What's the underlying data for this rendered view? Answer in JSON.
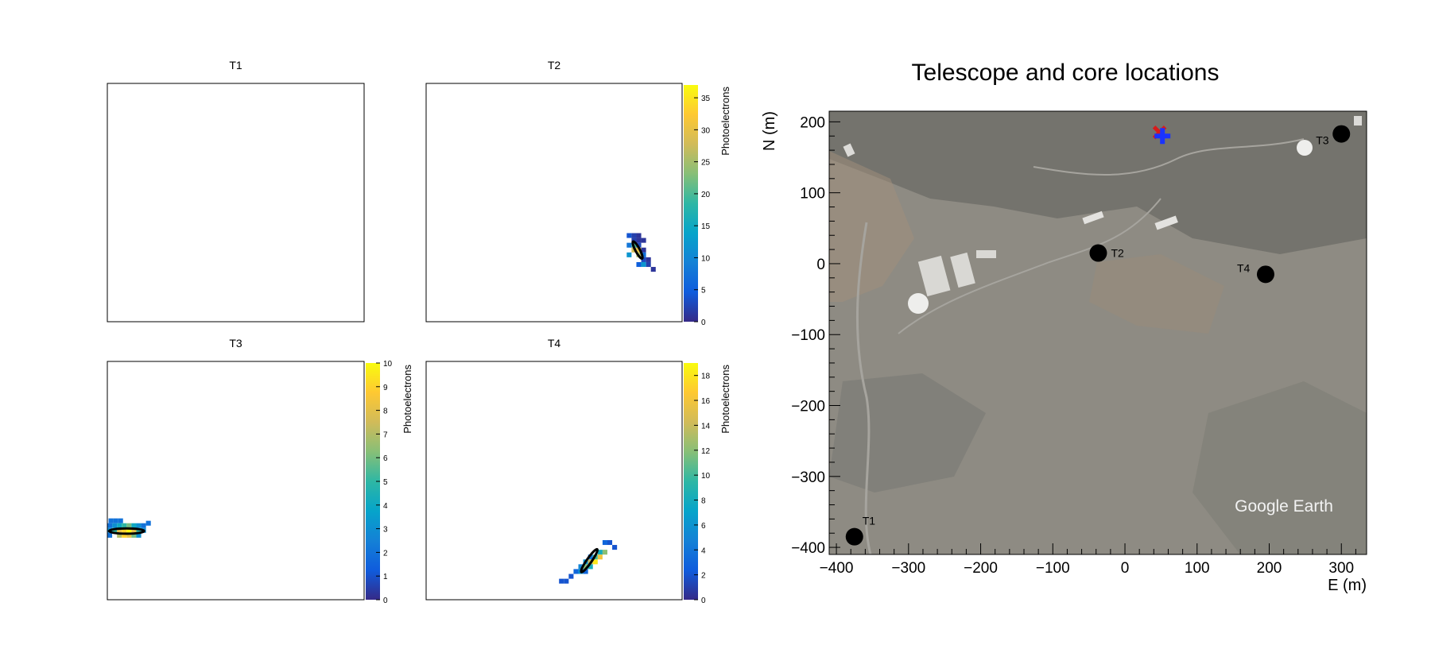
{
  "colors": {
    "palette": [
      "#352a87",
      "#0f5cdd",
      "#1481d6",
      "#06a4ca",
      "#2eb7a4",
      "#87bf77",
      "#d1bb59",
      "#fec832",
      "#f9fb0e"
    ],
    "ellipse": "#000000",
    "background": "#ffffff",
    "map_ground": "#8e8b83",
    "map_vegetation": "#6b6b66",
    "marker_telescope": "#000000",
    "marker_core_true": "#d91a1a",
    "marker_core_reco": "#1a33ff"
  },
  "camera_panels": [
    {
      "id": "T1",
      "title": "T1",
      "has_colorbar": false,
      "colorbar": null,
      "pixels": [],
      "ellipse": null
    },
    {
      "id": "T2",
      "title": "T2",
      "has_colorbar": true,
      "colorbar": {
        "label": "Photoelectrons",
        "min": 0,
        "max": 37,
        "ticks": [
          "0",
          "5",
          "10",
          "15",
          "20",
          "25",
          "30",
          "35"
        ]
      },
      "pixels": [
        [
          16.8,
          12.6,
          4
        ],
        [
          17.2,
          12.6,
          2
        ],
        [
          17.6,
          12.6,
          1
        ],
        [
          17.2,
          13.0,
          2
        ],
        [
          17.6,
          13.0,
          1
        ],
        [
          18.0,
          13.0,
          1
        ],
        [
          16.8,
          13.4,
          8
        ],
        [
          17.2,
          13.4,
          20
        ],
        [
          17.6,
          13.4,
          3
        ],
        [
          17.2,
          13.8,
          28
        ],
        [
          17.6,
          13.8,
          30
        ],
        [
          18.0,
          13.8,
          1
        ],
        [
          16.8,
          14.2,
          12
        ],
        [
          17.6,
          14.2,
          26
        ],
        [
          18.0,
          14.2,
          7
        ],
        [
          18.0,
          14.6,
          3
        ],
        [
          18.4,
          14.6,
          1
        ],
        [
          17.6,
          15.0,
          5
        ],
        [
          18.0,
          15.0,
          12
        ],
        [
          18.4,
          15.0,
          2
        ],
        [
          18.8,
          15.4,
          1
        ]
      ],
      "ellipse": {
        "cx": 17.5,
        "cy": 13.8,
        "rx": 0.8,
        "ry": 0.18,
        "angle": 62
      }
    },
    {
      "id": "T3",
      "title": "T3",
      "has_colorbar": true,
      "colorbar": {
        "label": "Photoelectrons",
        "min": 0,
        "max": 10,
        "ticks": [
          "0",
          "1",
          "2",
          "3",
          "4",
          "5",
          "6",
          "7",
          "8",
          "9",
          "10"
        ]
      },
      "pixels": [
        [
          0.3,
          13.2,
          2
        ],
        [
          0.7,
          13.2,
          2
        ],
        [
          1.1,
          13.2,
          2
        ],
        [
          0.2,
          13.6,
          2
        ],
        [
          0.6,
          13.6,
          3
        ],
        [
          1.0,
          13.6,
          4
        ],
        [
          1.4,
          13.6,
          5
        ],
        [
          1.8,
          13.6,
          6
        ],
        [
          2.2,
          13.6,
          4
        ],
        [
          2.6,
          13.6,
          3
        ],
        [
          3.0,
          13.6,
          2
        ],
        [
          0.2,
          14.0,
          3
        ],
        [
          0.6,
          14.0,
          5
        ],
        [
          1.0,
          14.0,
          8
        ],
        [
          1.4,
          14.0,
          9
        ],
        [
          1.8,
          14.0,
          10
        ],
        [
          2.2,
          14.0,
          8
        ],
        [
          2.6,
          14.0,
          5
        ],
        [
          3.0,
          14.0,
          3
        ],
        [
          0.2,
          14.4,
          2
        ],
        [
          1.0,
          14.4,
          7
        ],
        [
          1.4,
          14.4,
          9
        ],
        [
          1.8,
          14.4,
          8
        ],
        [
          2.2,
          14.4,
          6
        ],
        [
          2.6,
          14.4,
          3
        ],
        [
          -0.2,
          13.8,
          2
        ],
        [
          -0.2,
          14.2,
          2
        ],
        [
          3.4,
          13.4,
          2
        ]
      ],
      "ellipse": {
        "cx": 1.6,
        "cy": 14.05,
        "rx": 1.45,
        "ry": 0.22,
        "angle": 0
      }
    },
    {
      "id": "T4",
      "title": "T4",
      "has_colorbar": true,
      "colorbar": {
        "label": "Photoelectrons",
        "min": 0,
        "max": 19,
        "ticks": [
          "0",
          "2",
          "4",
          "6",
          "8",
          "10",
          "12",
          "14",
          "16",
          "18"
        ]
      },
      "pixels": [
        [
          14.8,
          15.0,
          3
        ],
        [
          15.2,
          15.0,
          2
        ],
        [
          15.6,
          15.4,
          2
        ],
        [
          14.4,
          15.8,
          8
        ],
        [
          14.8,
          15.8,
          12
        ],
        [
          13.6,
          16.2,
          4
        ],
        [
          14.0,
          16.2,
          10
        ],
        [
          14.4,
          16.2,
          16
        ],
        [
          13.2,
          16.6,
          6
        ],
        [
          13.6,
          16.6,
          14
        ],
        [
          14.0,
          16.6,
          18
        ],
        [
          12.8,
          17.0,
          5
        ],
        [
          13.2,
          17.0,
          12
        ],
        [
          13.6,
          17.0,
          8
        ],
        [
          12.4,
          17.4,
          3
        ],
        [
          12.8,
          17.4,
          6
        ],
        [
          13.2,
          17.4,
          3
        ],
        [
          12.0,
          17.8,
          2
        ],
        [
          11.6,
          18.2,
          2
        ],
        [
          11.2,
          18.2,
          2
        ]
      ],
      "ellipse": {
        "cx": 13.5,
        "cy": 16.5,
        "rx": 1.15,
        "ry": 0.2,
        "angle": -55
      }
    }
  ],
  "chart_data": {
    "type": "scatter",
    "title": "Telescope and core locations",
    "xlabel": "E (m)",
    "ylabel": "N (m)",
    "xlim": [
      -410,
      335
    ],
    "ylim": [
      -410,
      215
    ],
    "xticks": [
      -400,
      -300,
      -200,
      -100,
      0,
      100,
      200,
      300
    ],
    "yticks": [
      -400,
      -300,
      -200,
      -100,
      0,
      100,
      200
    ],
    "grid": false,
    "background_label": "Google Earth",
    "telescopes": [
      {
        "name": "T1",
        "x": -375,
        "y": -385
      },
      {
        "name": "T2",
        "x": -37,
        "y": 15
      },
      {
        "name": "T3",
        "x": 300,
        "y": 183
      },
      {
        "name": "T4",
        "x": 195,
        "y": -15
      }
    ],
    "core_true": {
      "x": 48,
      "y": 185
    },
    "core_reconstructed": {
      "x": 52,
      "y": 180
    }
  }
}
